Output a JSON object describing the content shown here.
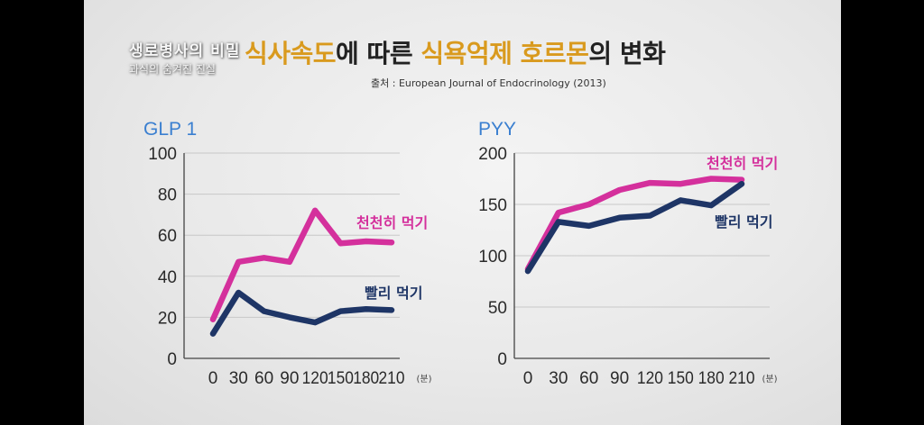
{
  "header": {
    "logo_title": "생로병사의 비밀",
    "logo_subtitle": "과식의 숨겨진 진실",
    "title_parts": [
      {
        "text": "식사속도",
        "highlight": true
      },
      {
        "text": "에 따른 ",
        "highlight": false
      },
      {
        "text": "식욕억제 호르몬",
        "highlight": true
      },
      {
        "text": "의 변화",
        "highlight": false
      }
    ],
    "source": "출처 : European Journal of Endocrinology (2013)"
  },
  "colors": {
    "slow": "#d4309c",
    "fast": "#1e3566",
    "heading": "#3a7fd0",
    "highlight": "#d99a1e"
  },
  "chart_data": [
    {
      "type": "line",
      "title": "GLP 1",
      "x": [
        "0",
        "30",
        "60",
        "90",
        "120",
        "150",
        "180",
        "210"
      ],
      "x_unit": "(분)",
      "ylim": [
        0,
        100
      ],
      "yticks": [
        "0",
        "20",
        "40",
        "60",
        "80",
        "100"
      ],
      "series": [
        {
          "name": "천천히 먹기",
          "values": [
            19,
            47,
            49,
            47,
            72,
            56,
            57,
            56.5
          ]
        },
        {
          "name": "빨리 먹기",
          "values": [
            12,
            32,
            23,
            20,
            17.5,
            23,
            24,
            23.5
          ]
        }
      ]
    },
    {
      "type": "line",
      "title": "PYY",
      "x": [
        "0",
        "30",
        "60",
        "90",
        "120",
        "150",
        "180",
        "210"
      ],
      "x_unit": "(분)",
      "ylim": [
        0,
        200
      ],
      "yticks": [
        "0",
        "50",
        "100",
        "150",
        "200"
      ],
      "series": [
        {
          "name": "천천히 먹기",
          "values": [
            87,
            142,
            150,
            164,
            171,
            170,
            175,
            174
          ]
        },
        {
          "name": "빨리 먹기",
          "values": [
            85,
            133,
            129,
            137,
            139,
            154,
            149,
            170
          ]
        }
      ]
    }
  ]
}
